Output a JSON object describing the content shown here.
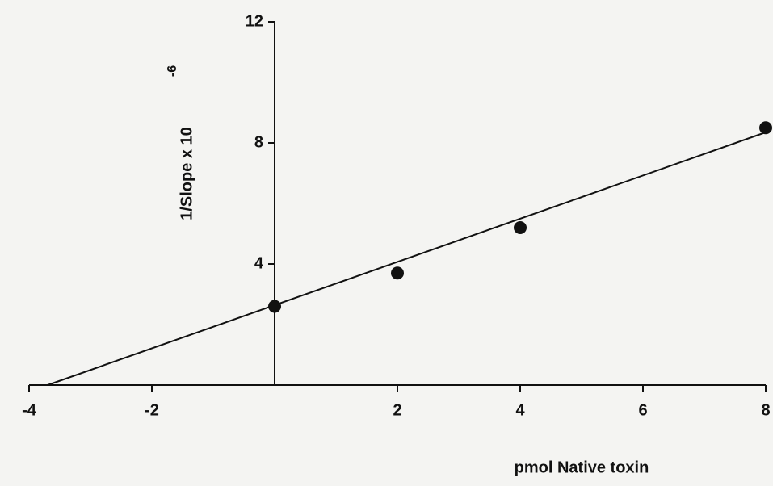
{
  "chart_data": {
    "type": "scatter",
    "x_label": "pmol Native toxin",
    "y_label": "1/Slope x 10",
    "y_label_exponent": "-6",
    "x": [
      0,
      2,
      4,
      8
    ],
    "values": [
      2.6,
      3.7,
      5.2,
      8.5
    ],
    "fit": {
      "x": [
        -3.7,
        8
      ],
      "values": [
        0,
        8.35
      ]
    },
    "color": "#111111",
    "xlim": [
      -4,
      8
    ],
    "xticks": [
      -4,
      -2,
      2,
      4,
      6,
      8
    ],
    "ylim": [
      0,
      12
    ],
    "yticks": [
      4,
      8,
      12
    ],
    "grid": false
  }
}
